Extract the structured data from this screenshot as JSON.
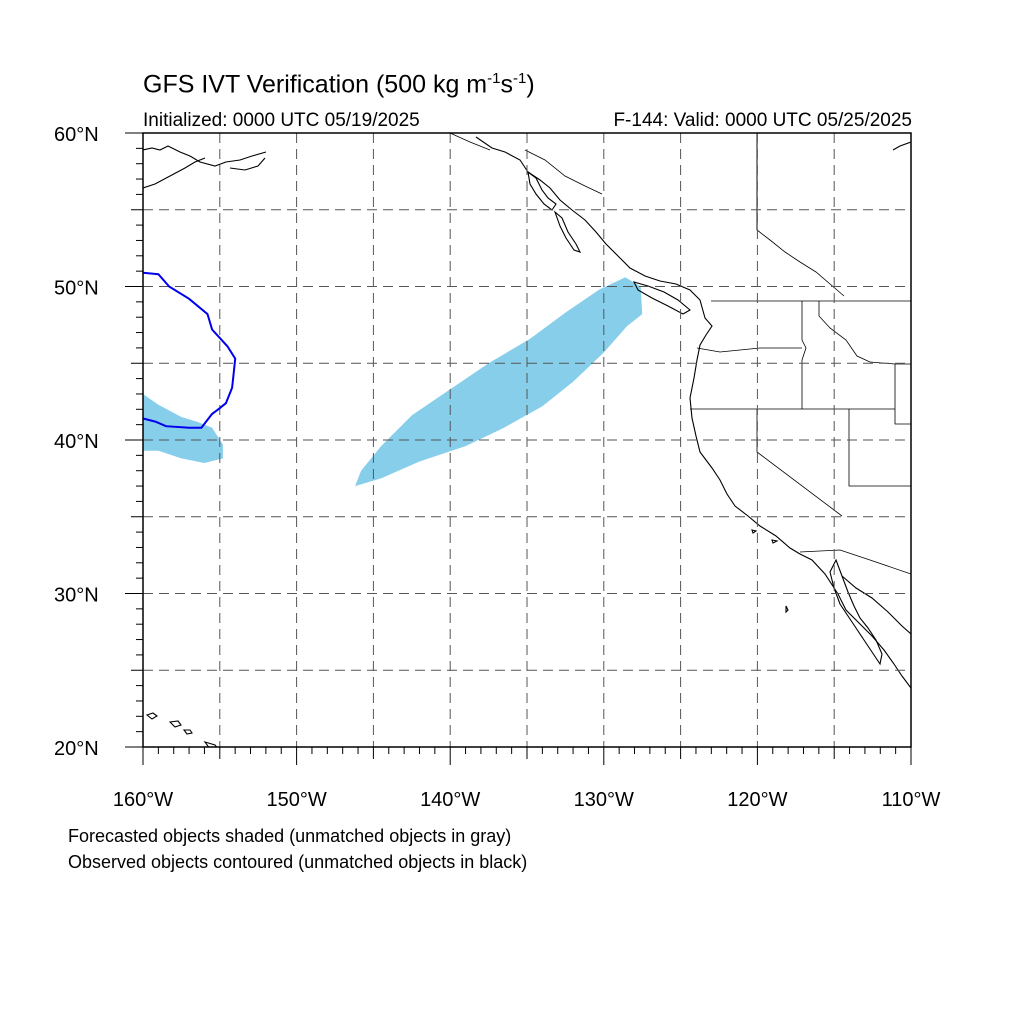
{
  "header": {
    "title_main": "GFS IVT Verification (500 kg m",
    "title_exp1": "-1",
    "title_mid": "s",
    "title_exp2": "-1",
    "title_end": ")",
    "initialized": "Initialized: 0000 UTC 05/19/2025",
    "valid": "F-144: Valid: 0000 UTC 05/25/2025"
  },
  "axes": {
    "lat_labels": [
      "60°N",
      "50°N",
      "40°N",
      "30°N",
      "20°N"
    ],
    "lon_labels": [
      "160°W",
      "150°W",
      "140°W",
      "130°W",
      "120°W",
      "110°W"
    ],
    "lon_range": [
      -160,
      -110
    ],
    "lat_range": [
      20,
      60
    ],
    "grid": "dashed every 5°"
  },
  "legend": {
    "line1": "Forecasted objects shaded (unmatched objects in gray)",
    "line2": "Observed objects contoured (unmatched objects in black)"
  },
  "colors": {
    "forecast_fill": "#87CEEB",
    "observed_contour": "#0000EE",
    "coastline": "#000000",
    "grid": "#555555"
  },
  "map_objects": {
    "forecast_ar_east": [
      [
        -146.2,
        37.0
      ],
      [
        -144.5,
        37.5
      ],
      [
        -142,
        38.6
      ],
      [
        -139,
        39.6
      ],
      [
        -136.5,
        40.8
      ],
      [
        -134,
        42.2
      ],
      [
        -132,
        43.8
      ],
      [
        -130,
        45.7
      ],
      [
        -128.5,
        47.4
      ],
      [
        -127.5,
        48.2
      ],
      [
        -127.6,
        50.0
      ],
      [
        -128.6,
        50.6
      ],
      [
        -130.3,
        49.8
      ],
      [
        -132.5,
        48.3
      ],
      [
        -134.8,
        46.6
      ],
      [
        -137.5,
        45.0
      ],
      [
        -140,
        43.3
      ],
      [
        -142.5,
        41.6
      ],
      [
        -144.5,
        39.6
      ],
      [
        -145.8,
        38.0
      ]
    ],
    "forecast_ar_west": [
      [
        -160,
        43.0
      ],
      [
        -159,
        42.3
      ],
      [
        -157.5,
        41.5
      ],
      [
        -156.5,
        41.2
      ],
      [
        -155.5,
        40.8
      ],
      [
        -154.8,
        39.7
      ],
      [
        -154.8,
        38.8
      ],
      [
        -156,
        38.5
      ],
      [
        -157.5,
        38.8
      ],
      [
        -159,
        39.3
      ],
      [
        -160,
        39.3
      ]
    ],
    "observed_contour_west": [
      [
        -160,
        50.9
      ],
      [
        -159,
        50.8
      ],
      [
        -158.3,
        50.0
      ],
      [
        -157,
        49.2
      ],
      [
        -155.8,
        48.2
      ],
      [
        -155.5,
        47.2
      ],
      [
        -154.5,
        46.1
      ],
      [
        -154.0,
        45.3
      ],
      [
        -154.1,
        44.3
      ],
      [
        -154.2,
        43.4
      ],
      [
        -154.6,
        42.4
      ],
      [
        -155.1,
        42.0
      ],
      [
        -155.5,
        41.7
      ],
      [
        -156.2,
        40.8
      ],
      [
        -157,
        40.8
      ],
      [
        -158.5,
        40.9
      ],
      [
        -159.2,
        41.2
      ],
      [
        -160,
        41.4
      ]
    ]
  }
}
